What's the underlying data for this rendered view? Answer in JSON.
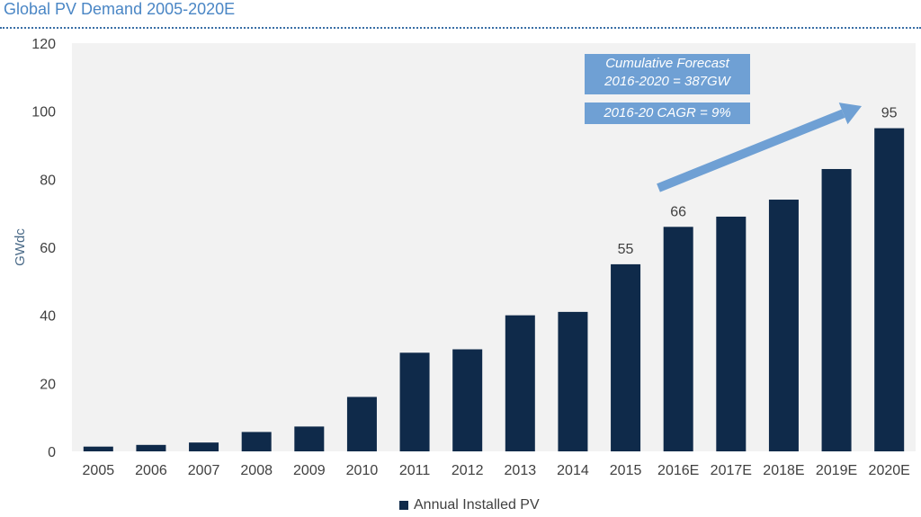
{
  "title": "Global PV Demand  2005-2020E",
  "colors": {
    "bar": "#0f2a4a",
    "plot_bg": "#f2f2f2",
    "arrow": "#6fa0d4",
    "title": "#4a86c5"
  },
  "chart_data": {
    "type": "bar",
    "title": "Global PV Demand  2005-2020E",
    "xlabel": "",
    "ylabel": "GWdc",
    "ylim": [
      0,
      120
    ],
    "yticks": [
      0,
      20,
      40,
      60,
      80,
      100,
      120
    ],
    "categories": [
      "2005",
      "2006",
      "2007",
      "2008",
      "2009",
      "2010",
      "2011",
      "2012",
      "2013",
      "2014",
      "2015",
      "2016E",
      "2017E",
      "2018E",
      "2019E",
      "2020E"
    ],
    "series": [
      {
        "name": "Annual Installed PV",
        "values": [
          1.4,
          1.9,
          2.6,
          5.7,
          7.3,
          16,
          29,
          30,
          40,
          41,
          55,
          66,
          69,
          74,
          83,
          95
        ]
      }
    ],
    "data_labels": {
      "2015": "55",
      "2016E": "66",
      "2020E": "95"
    },
    "legend_position": "bottom",
    "grid": false,
    "annotations": [
      {
        "line1": "Cumulative Forecast",
        "line2": "2016-2020 = 387GW"
      },
      {
        "text": "2016-20 CAGR = 9%"
      }
    ]
  }
}
